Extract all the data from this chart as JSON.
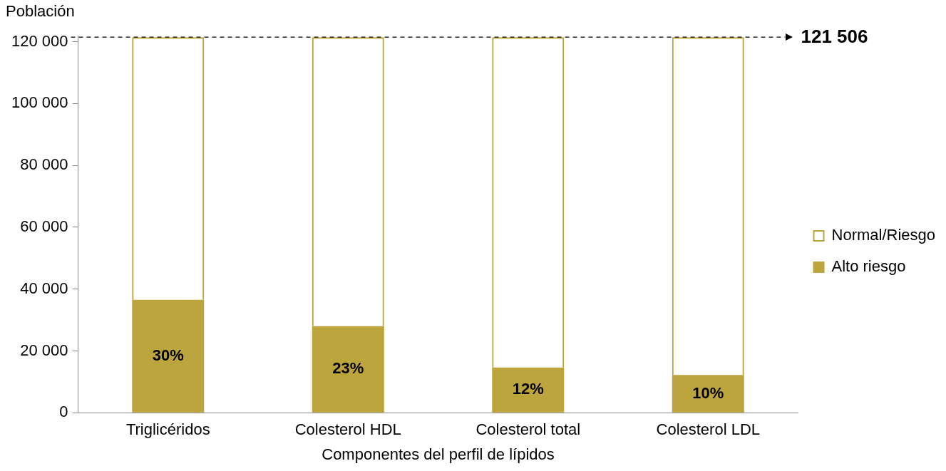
{
  "chart_data": {
    "type": "bar",
    "stacked": true,
    "ylabel": "Población",
    "xlabel": "Componentes del perfil de lípidos",
    "categories": [
      "Triglicéridos",
      "Colesterol HDL",
      "Colesterol total",
      "Colesterol LDL"
    ],
    "series": [
      {
        "name": "Alto riesgo",
        "color": "#bca53c",
        "values": [
          36500,
          28000,
          14600,
          12200
        ]
      },
      {
        "name": "Normal/Riesgo",
        "color": "#bca53c",
        "values": [
          85000,
          93500,
          106900,
          109300
        ]
      }
    ],
    "annotations": [
      "30%",
      "23%",
      "12%",
      "10%"
    ],
    "ylim": [
      0,
      122000
    ],
    "yticks": [
      0,
      {
        "value": 20000,
        "label": "20 000"
      },
      {
        "value": 40000,
        "label": "40 000"
      },
      {
        "value": 60000,
        "label": "60 000"
      },
      {
        "value": 80000,
        "label": "80 000"
      },
      {
        "value": 100000,
        "label": "100 000"
      },
      {
        "value": 120000,
        "label": "120 000"
      }
    ],
    "ref_lines": [
      {
        "axis": "y",
        "value": 121506,
        "label": "121 506",
        "line_style": "dashed",
        "color": "#000000"
      }
    ],
    "legend": "right",
    "grid": false
  }
}
